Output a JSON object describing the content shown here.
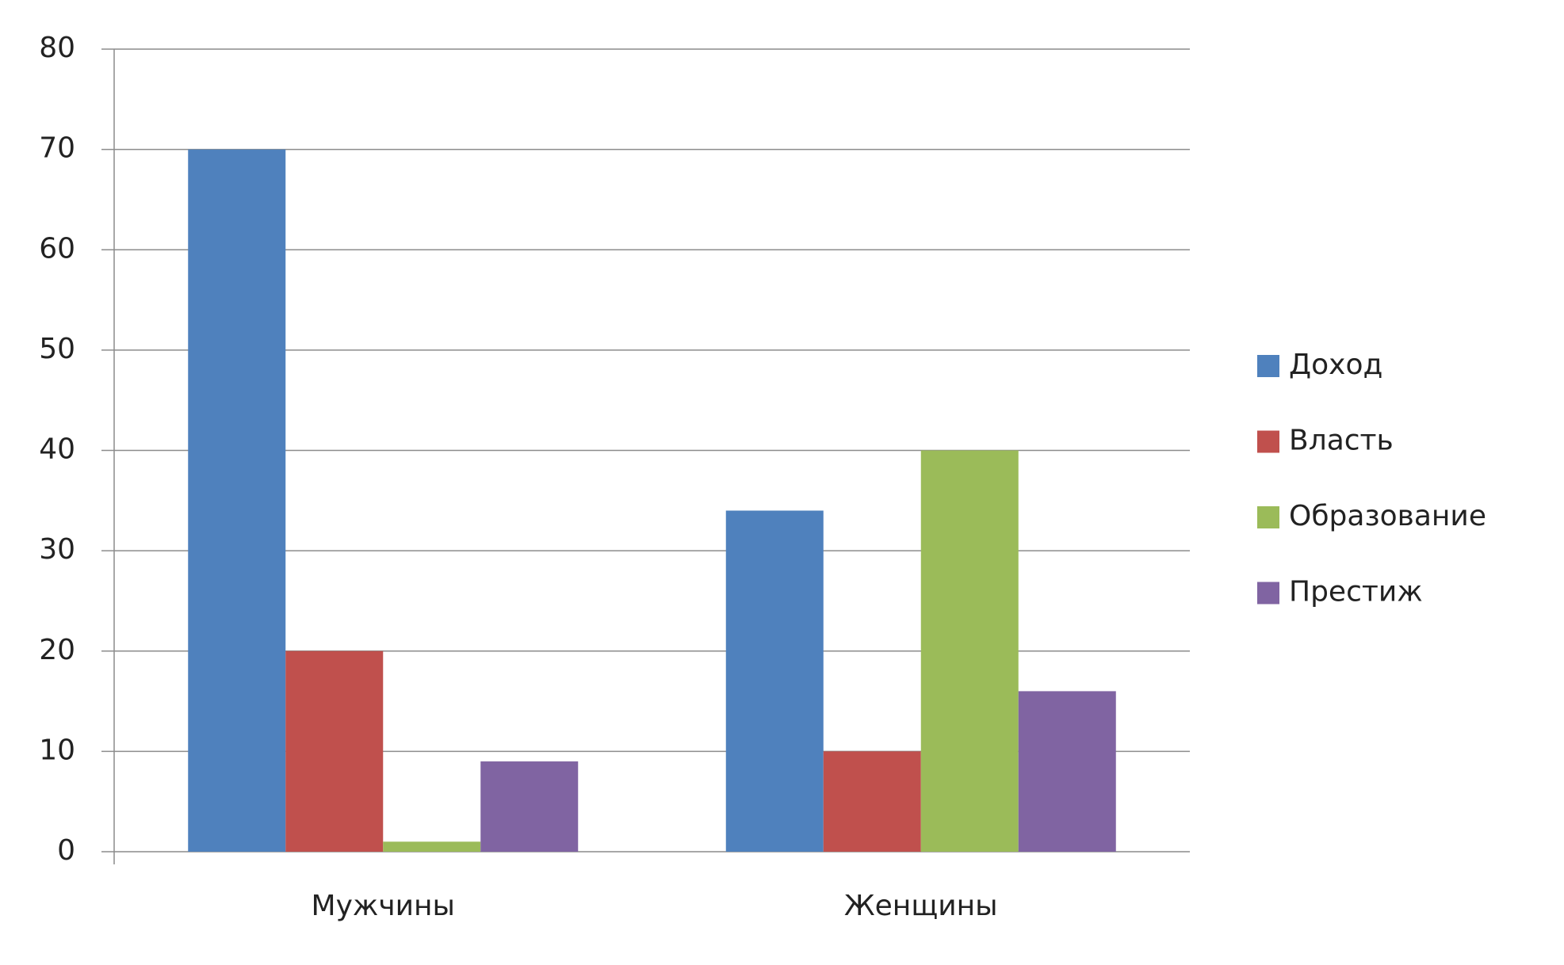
{
  "chart_data": {
    "type": "bar",
    "categories": [
      "Мужчины",
      "Женщины"
    ],
    "series": [
      {
        "name": "Доход",
        "color": "#4f81bd",
        "values": [
          70,
          34
        ]
      },
      {
        "name": "Власть",
        "color": "#c0504d",
        "values": [
          20,
          10
        ]
      },
      {
        "name": "Образование",
        "color": "#9bbb59",
        "values": [
          1,
          40
        ]
      },
      {
        "name": "Престиж",
        "color": "#8064a2",
        "values": [
          9,
          16
        ]
      }
    ],
    "ylim": [
      0,
      80
    ],
    "yticks": [
      0,
      10,
      20,
      30,
      40,
      50,
      60,
      70,
      80
    ],
    "grid": true,
    "legend": "right"
  }
}
